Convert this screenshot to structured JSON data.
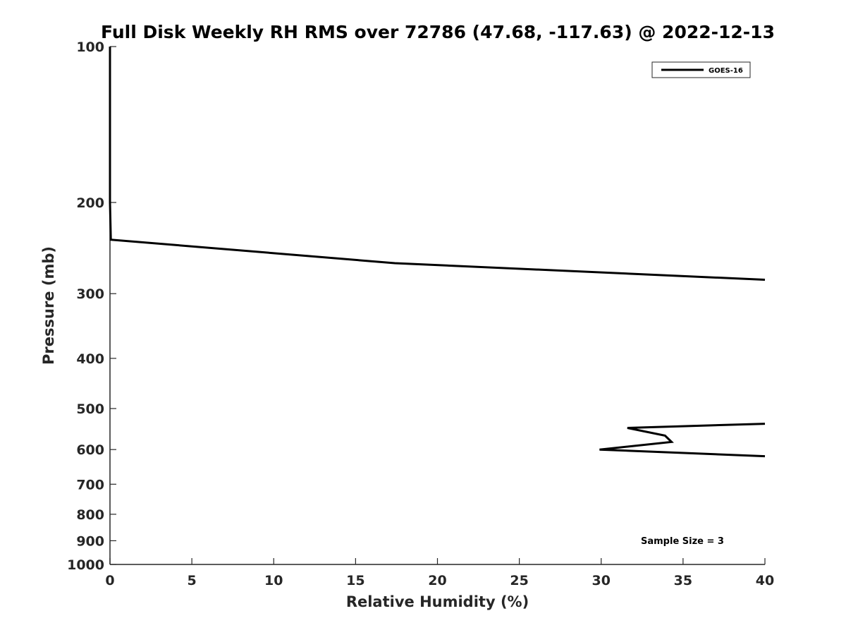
{
  "chart_data": {
    "type": "line",
    "title": "Full Disk Weekly RH RMS over 72786 (47.68, -117.63) @ 2022-12-13",
    "xlabel": "Relative Humidity (%)",
    "ylabel": "Pressure (mb)",
    "xlim": [
      0,
      40
    ],
    "ylim": [
      100,
      1000
    ],
    "yscale": "log",
    "y_reversed": true,
    "xticks": [
      0,
      5,
      10,
      15,
      20,
      25,
      30,
      35,
      40
    ],
    "xtick_labels": [
      "0",
      "5",
      "10",
      "15",
      "20",
      "25",
      "30",
      "35",
      "40"
    ],
    "yticks": [
      100,
      200,
      300,
      400,
      500,
      600,
      700,
      800,
      900,
      1000
    ],
    "ytick_labels": [
      "100",
      "200",
      "300",
      "400",
      "500",
      "600",
      "700",
      "800",
      "900",
      "1000"
    ],
    "grid": false,
    "legend": {
      "position": "top-right",
      "entries": [
        "GOES-16"
      ]
    },
    "annotation": "Sample Size = 3",
    "series": [
      {
        "name": "GOES-16",
        "color": "#000000",
        "segments": [
          [
            {
              "x": 0,
              "y": 100
            },
            {
              "x": 0,
              "y": 150
            },
            {
              "x": 0,
              "y": 200
            },
            {
              "x": 0.05,
              "y": 236
            },
            {
              "x": 17.4,
              "y": 262
            },
            {
              "x": 40,
              "y": 282
            }
          ],
          [
            {
              "x": 40,
              "y": 535
            },
            {
              "x": 31.6,
              "y": 545
            },
            {
              "x": 33.9,
              "y": 564
            },
            {
              "x": 34.3,
              "y": 580
            },
            {
              "x": 29.9,
              "y": 600
            },
            {
              "x": 40,
              "y": 618
            }
          ]
        ]
      }
    ]
  }
}
